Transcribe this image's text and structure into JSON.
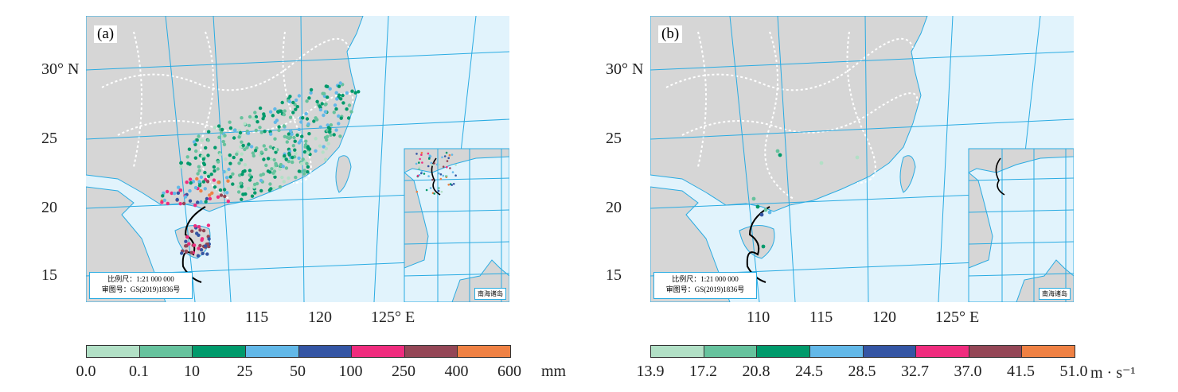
{
  "panels": [
    {
      "label": "(a)",
      "scale_text": "比例尺：1:21 000 000",
      "map_no": "审图号：GS(2019)1836号",
      "inset_label": "南海诸岛",
      "dots": "rainfall"
    },
    {
      "label": "(b)",
      "scale_text": "比例尺：1:21 000 000",
      "map_no": "审图号：GS(2019)1836号",
      "inset_label": "南海诸岛",
      "dots": "wind"
    }
  ],
  "lat_labels": [
    "30° N",
    "25",
    "20",
    "15"
  ],
  "lon_labels": [
    "110",
    "115",
    "120",
    "125° E"
  ],
  "colors": {
    "land": "#d6d6d6",
    "sea": "#e1f3fc",
    "grid": "#29abe2",
    "track": "#000000",
    "border": "#ffffff"
  },
  "legend_a": {
    "colors": [
      "#b2e0c6",
      "#66c29d",
      "#009a6b",
      "#62b8e8",
      "#3455a4",
      "#ef2c7e",
      "#944656",
      "#ef8144"
    ],
    "ticks": [
      "0.0",
      "0.1",
      "10",
      "25",
      "50",
      "100",
      "250",
      "400",
      "600"
    ],
    "unit": "mm"
  },
  "legend_b": {
    "colors": [
      "#b2e0c6",
      "#66c29d",
      "#009a6b",
      "#62b8e8",
      "#3455a4",
      "#ef2c7e",
      "#944656",
      "#ef8144"
    ],
    "ticks": [
      "13.9",
      "17.2",
      "20.8",
      "24.5",
      "28.5",
      "32.7",
      "37.0",
      "41.5",
      "51.0"
    ],
    "unit": "m · s⁻¹"
  }
}
